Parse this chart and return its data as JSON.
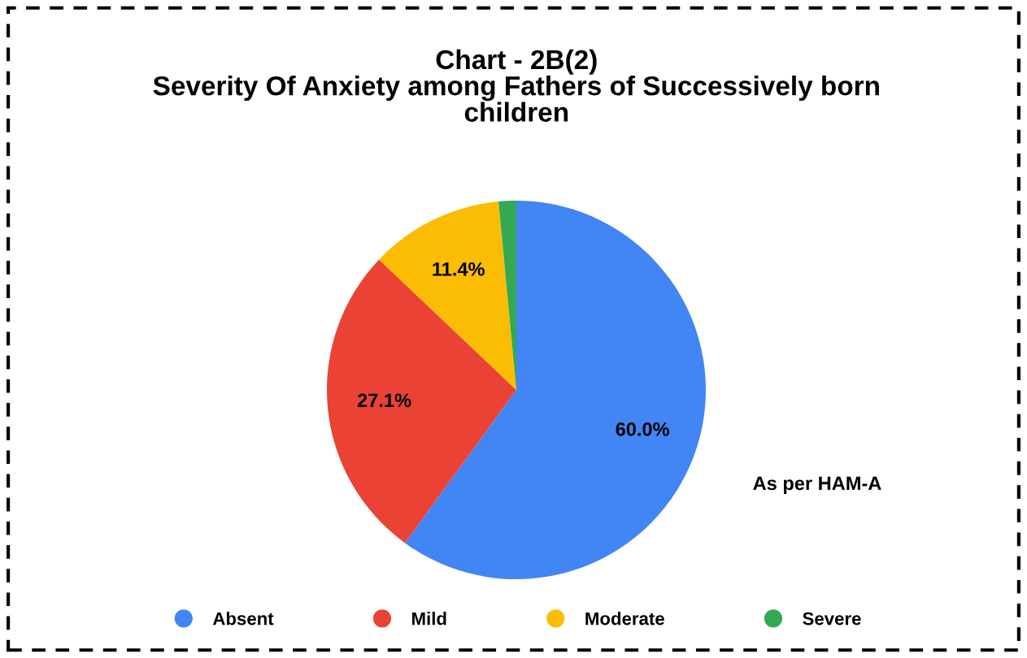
{
  "chart_data": {
    "type": "pie",
    "title": "Chart - 2B(2)\nSeverity Of Anxiety among Fathers of Successively born\nchildren",
    "categories": [
      "Absent",
      "Mild",
      "Moderate",
      "Severe"
    ],
    "values": [
      60.0,
      27.1,
      11.4,
      1.5
    ],
    "value_labels": [
      "60.0%",
      "27.1%",
      "11.4%",
      null
    ],
    "colors": [
      "#4285f4",
      "#ea4335",
      "#fbbc04",
      "#34a853"
    ],
    "annotations": [
      "As per HAM-A"
    ],
    "legend": "bottom"
  }
}
